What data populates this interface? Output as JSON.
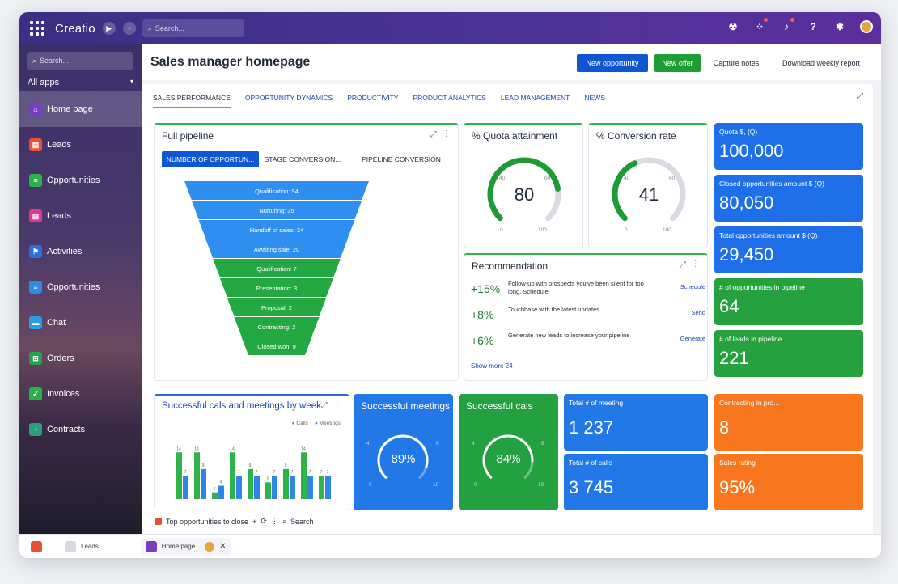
{
  "app": {
    "brand": "Creatio",
    "top_search_placeholder": "Search..."
  },
  "sidebar": {
    "search_placeholder": "Search...",
    "all_apps": "All apps",
    "items": [
      {
        "label": "Home page",
        "icon": "home-icon",
        "color": "#7a3cc4"
      },
      {
        "label": "Leads",
        "icon": "leads-icon",
        "color": "#e8502f"
      },
      {
        "label": "Opportunities",
        "icon": "opportunities-icon",
        "color": "#2bb14b"
      },
      {
        "label": "Leads",
        "icon": "leads-icon",
        "color": "#d93a8f"
      },
      {
        "label": "Activities",
        "icon": "flag-icon",
        "color": "#2b6fe0"
      },
      {
        "label": "Opportunities",
        "icon": "opportunities-icon",
        "color": "#2b8be8"
      },
      {
        "label": "Chat",
        "icon": "chat-icon",
        "color": "#2a9de8"
      },
      {
        "label": "Orders",
        "icon": "cart-icon",
        "color": "#23a34a"
      },
      {
        "label": "Invoices",
        "icon": "invoice-icon",
        "color": "#2bb14b"
      },
      {
        "label": "Contracts",
        "icon": "contract-icon",
        "color": "#2a9f7a"
      }
    ]
  },
  "header": {
    "title": "Sales manager homepage",
    "new_opportunity": "New opportunity",
    "new_offer": "New offer",
    "capture_notes": "Capture notes",
    "download_report": "Download weekly report"
  },
  "tabs": [
    "SALES PERFORMANCE",
    "OPPORTUNITY DYNAMICS",
    "PRODUCTIVITY",
    "PRODUCT ANALYTICS",
    "LEAD MANAGEMENT",
    "NEWS"
  ],
  "pipeline": {
    "title": "Full pipeline",
    "segments": [
      "NUMBER OF OPPORTUN...",
      "STAGE CONVERSION...",
      "PIPELINE CONVERSION"
    ],
    "stages": [
      {
        "label": "Qualification: 94",
        "color": "#2f8ff0"
      },
      {
        "label": "Nurturing: 35",
        "color": "#2f8ff0"
      },
      {
        "label": "Handoff of sales: 34",
        "color": "#2f8ff0"
      },
      {
        "label": "Awaiting sale: 20",
        "color": "#2f8ff0"
      },
      {
        "label": "Qualification: 7",
        "color": "#24a842"
      },
      {
        "label": "Presentation: 3",
        "color": "#24a842"
      },
      {
        "label": "Proposal: 2",
        "color": "#24a842"
      },
      {
        "label": "Contracting: 2",
        "color": "#24a842"
      },
      {
        "label": "Closed won: 9",
        "color": "#24a842"
      }
    ]
  },
  "quota": {
    "title": "% Quota attainment",
    "value": "80",
    "level": 80,
    "ticks": [
      "0",
      "40",
      "60",
      "100"
    ]
  },
  "conversion": {
    "title": "% Conversion rate",
    "value": "41",
    "level": 41,
    "ticks": [
      "0",
      "40",
      "60",
      "100"
    ]
  },
  "kpis": [
    {
      "label": "Quota $, (Q)",
      "value": "100,000",
      "color": "#1f6fe8"
    },
    {
      "label": "Closed opportunities amount $ (Q)",
      "value": "80,050",
      "color": "#1f6fe8"
    },
    {
      "label": "Total opportunities amount $ (Q)",
      "value": "29,450",
      "color": "#1f6fe8"
    },
    {
      "label": "# of opportunities in pipeline",
      "value": "64",
      "color": "#25a23f"
    },
    {
      "label": "# of leads in pipeline",
      "value": "221",
      "color": "#25a23f"
    }
  ],
  "recommendation": {
    "title": "Recommendation",
    "rows": [
      {
        "pct": "+15%",
        "text": "Follow-up with prospects you've been silent for too long. Schedule",
        "action": "Schedule"
      },
      {
        "pct": "+8%",
        "text": "Touchbase with the latest updates",
        "action": "Send"
      },
      {
        "pct": "+6%",
        "text": "Generate new leads to increase your pipeline",
        "action": "Generate"
      }
    ],
    "show_more": "Show more 24"
  },
  "weekly": {
    "title": "Successful cals and meetings by week",
    "legend_calls": "Calls",
    "legend_meetings": "Meetings"
  },
  "chart_data": {
    "type": "bar",
    "title": "Successful cals and meetings by week",
    "series": [
      {
        "name": "Calls",
        "values": [
          14,
          14,
          2,
          14,
          9,
          5,
          9,
          14,
          7
        ],
        "color": "#2fb34b"
      },
      {
        "name": "Meetings",
        "values": [
          7,
          9,
          4,
          7,
          7,
          7,
          7,
          7,
          7
        ],
        "color": "#2f86e8"
      }
    ],
    "ylim": [
      0,
      16
    ]
  },
  "meetings_tile": {
    "title": "Successful meetings",
    "value": "89%",
    "level": 89,
    "ticks": [
      "0",
      "4",
      "6",
      "10"
    ]
  },
  "calls_tile": {
    "title": "Successful cals",
    "value": "84%",
    "level": 84,
    "ticks": [
      "0",
      "4",
      "6",
      "10"
    ]
  },
  "totals": [
    {
      "label": "Total # of meeting",
      "value": "1 237"
    },
    {
      "label": "Total # of calls",
      "value": "3 745"
    }
  ],
  "orange": [
    {
      "label": "Contracting in pro...",
      "value": "8"
    },
    {
      "label": "Sales rating",
      "value": "95%"
    }
  ],
  "top_opps": {
    "label": "Top opportunities to close",
    "search": "Search"
  },
  "taskbar": {
    "leads": "Leads",
    "home": "Home page"
  },
  "colors": {
    "accent_blue": "#0d58d2",
    "accent_green": "#1e9d35",
    "orange": "#f7761e"
  }
}
